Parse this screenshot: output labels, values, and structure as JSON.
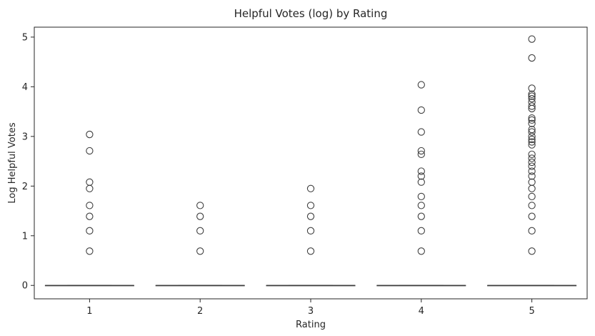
{
  "chart_data": {
    "type": "box",
    "title": "Helpful Votes (log) by Rating",
    "xlabel": "Rating",
    "ylabel": "Log Helpful Votes",
    "categories": [
      "1",
      "2",
      "3",
      "4",
      "5"
    ],
    "yticks": [
      "0",
      "1",
      "2",
      "3",
      "4",
      "5"
    ],
    "ylim": [
      -0.27,
      5.2
    ],
    "grid": false,
    "colors": {
      "box_line": "#3f3f3f",
      "outlier_edge": "#3f3f3f",
      "axis": "#262626"
    },
    "boxes": [
      {
        "category": "1",
        "q1": 0,
        "median": 0,
        "q3": 0,
        "whisker_low": 0,
        "whisker_high": 0,
        "outliers": [
          0.69,
          1.1,
          1.39,
          1.61,
          1.95,
          2.08,
          2.71,
          3.04
        ]
      },
      {
        "category": "2",
        "q1": 0,
        "median": 0,
        "q3": 0,
        "whisker_low": 0,
        "whisker_high": 0,
        "outliers": [
          0.69,
          1.1,
          1.39,
          1.61
        ]
      },
      {
        "category": "3",
        "q1": 0,
        "median": 0,
        "q3": 0,
        "whisker_low": 0,
        "whisker_high": 0,
        "outliers": [
          0.69,
          1.1,
          1.39,
          1.61,
          1.95
        ]
      },
      {
        "category": "4",
        "q1": 0,
        "median": 0,
        "q3": 0,
        "whisker_low": 0,
        "whisker_high": 0,
        "outliers": [
          0.69,
          1.1,
          1.39,
          1.61,
          1.79,
          2.08,
          2.2,
          2.3,
          2.64,
          2.71,
          3.09,
          3.53,
          4.04
        ]
      },
      {
        "category": "5",
        "q1": 0,
        "median": 0,
        "q3": 0,
        "whisker_low": 0,
        "whisker_high": 0,
        "outliers": [
          0.69,
          1.1,
          1.39,
          1.61,
          1.79,
          1.95,
          2.08,
          2.2,
          2.3,
          2.4,
          2.48,
          2.56,
          2.64,
          2.83,
          2.89,
          2.94,
          3.0,
          3.09,
          3.14,
          3.26,
          3.33,
          3.37,
          3.56,
          3.61,
          3.69,
          3.76,
          3.81,
          3.85,
          3.97,
          4.58,
          4.96
        ]
      }
    ]
  }
}
